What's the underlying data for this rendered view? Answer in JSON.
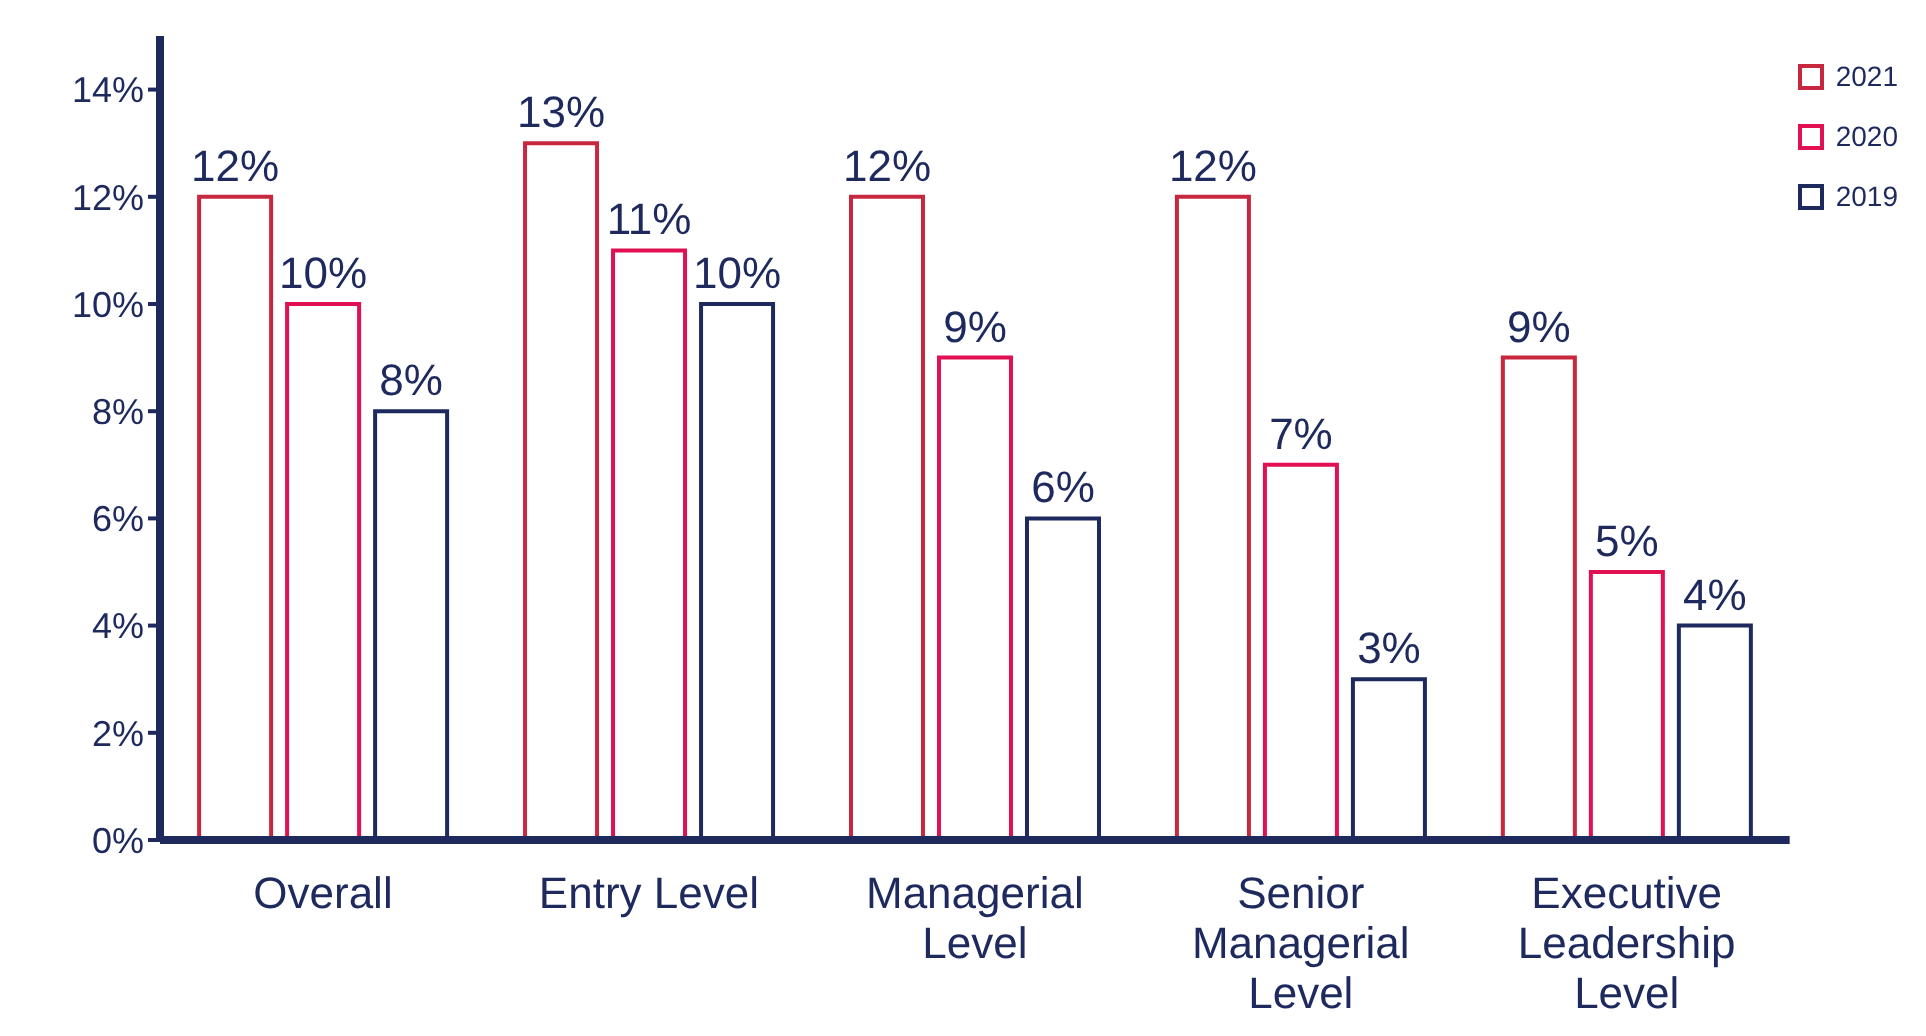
{
  "chart_data": {
    "type": "bar",
    "categories": [
      "Overall",
      "Entry Level",
      "Managerial Level",
      "Senior Managerial Level",
      "Executive Leadership Level"
    ],
    "series": [
      {
        "name": "2021",
        "color": "#c8283f",
        "values": [
          12,
          13,
          12,
          12,
          9
        ],
        "value_labels": [
          "12%",
          "13%",
          "12%",
          "12%",
          "9%"
        ]
      },
      {
        "name": "2020",
        "color": "#e01052",
        "values": [
          10,
          11,
          9,
          7,
          5
        ],
        "value_labels": [
          "10%",
          "11%",
          "9%",
          "7%",
          "5%"
        ]
      },
      {
        "name": "2019",
        "color": "#1e2a5e",
        "values": [
          8,
          10,
          6,
          3,
          4
        ],
        "value_labels": [
          "8%",
          "10%",
          "6%",
          "3%",
          "4%"
        ]
      }
    ],
    "ylim": [
      0,
      15
    ],
    "yticks": [
      {
        "value": 0,
        "label": "0%"
      },
      {
        "value": 2,
        "label": "2%"
      },
      {
        "value": 4,
        "label": "4%"
      },
      {
        "value": 6,
        "label": "6%"
      },
      {
        "value": 8,
        "label": "8%"
      },
      {
        "value": 10,
        "label": "10%"
      },
      {
        "value": 12,
        "label": "12%"
      },
      {
        "value": 14,
        "label": "14%"
      }
    ],
    "grid": false,
    "legend": "top right"
  }
}
